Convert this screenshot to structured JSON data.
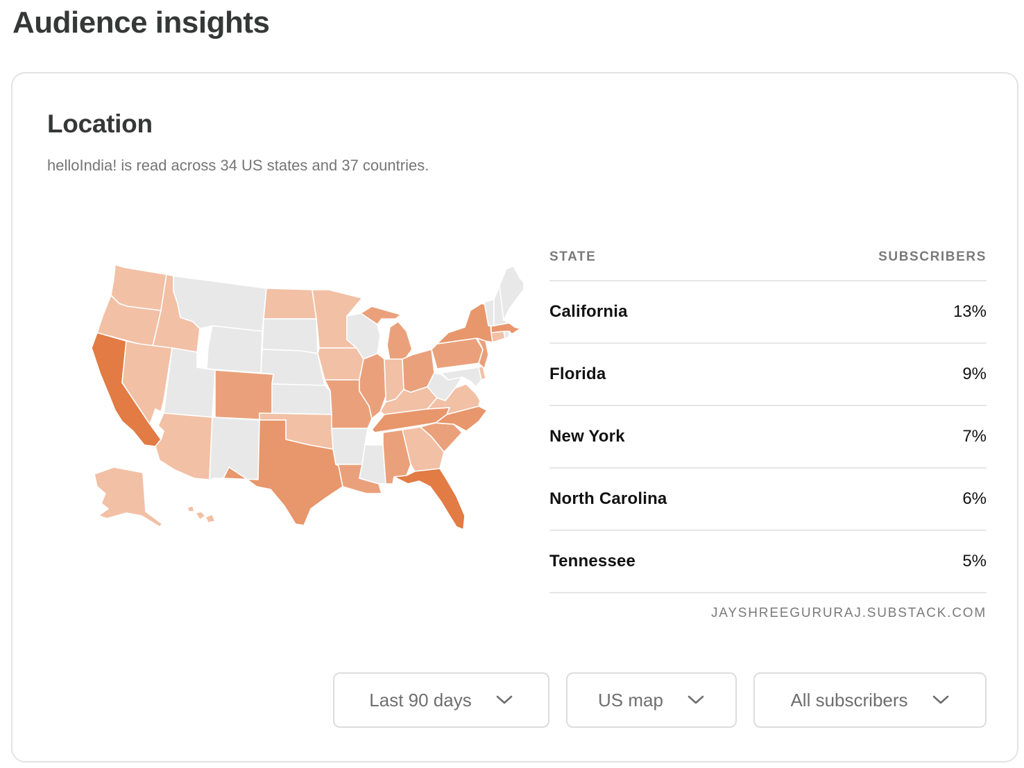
{
  "page": {
    "title": "Audience insights"
  },
  "card": {
    "title": "Location",
    "subtitle": "helloIndia! is read across 34 US states and 37 countries."
  },
  "table": {
    "columns": [
      "STATE",
      "SUBSCRIBERS"
    ],
    "rows": [
      {
        "state": "California",
        "share": "13%"
      },
      {
        "state": "Florida",
        "share": "9%"
      },
      {
        "state": "New York",
        "share": "7%"
      },
      {
        "state": "North Carolina",
        "share": "6%"
      },
      {
        "state": "Tennessee",
        "share": "5%"
      }
    ],
    "source": "JAYSHREEGURURAJ.SUBSTACK.COM"
  },
  "filters": {
    "period": {
      "label": "Last 90 days",
      "icon": "chevron-down-icon"
    },
    "view": {
      "label": "US map",
      "icon": "chevron-down-icon"
    },
    "audience": {
      "label": "All subscribers",
      "icon": "chevron-down-icon"
    }
  },
  "map": {
    "type": "choropleth",
    "region": "United States",
    "colors": {
      "none": "#e8e8e8",
      "tier1": "#f2c0a5",
      "tier2": "#eaa17b",
      "tier3": "#e8966b",
      "tier4": "#e27b44"
    },
    "states": {
      "WA": 1,
      "OR": 1,
      "ID": 1,
      "NV": 1,
      "AZ": 1,
      "AK": 1,
      "HI": 1,
      "ND": 1,
      "MN": 1,
      "IA": 1,
      "OK": 1,
      "IN": 1,
      "KY": 1,
      "VA": 1,
      "GA": 1,
      "CT": 1,
      "DE": 1,
      "CO": 2,
      "MO": 2,
      "IL": 2,
      "MI": 2,
      "OH": 2,
      "PA": 2,
      "AL": 2,
      "LA": 2,
      "SC": 2,
      "NJ": 2,
      "TX": 3,
      "NC": 3,
      "TN": 3,
      "NY": 3,
      "MA": 3,
      "FL": 4,
      "CA": 4,
      "MT": 0,
      "WY": 0,
      "UT": 0,
      "NM": 0,
      "SD": 0,
      "NE": 0,
      "KS": 0,
      "AR": 0,
      "MS": 0,
      "WI": 0,
      "WV": 0,
      "MD": 0,
      "ME": 0,
      "NH": 0,
      "VT": 0,
      "RI": 0
    }
  }
}
